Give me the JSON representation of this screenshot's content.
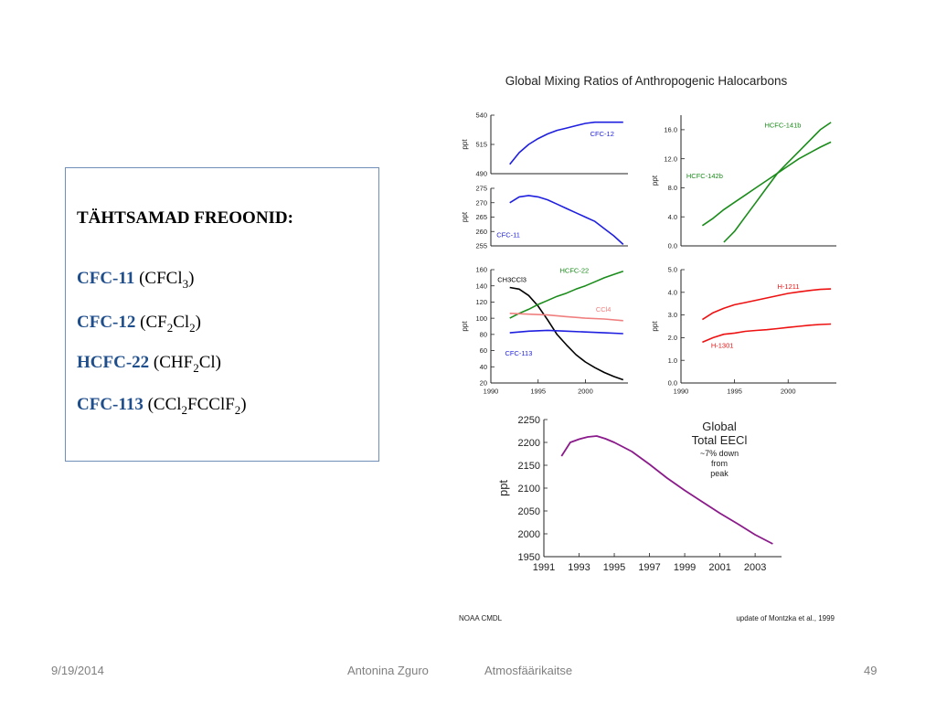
{
  "slide": {
    "box_heading": "TÄHTSAMAD FREOONID:",
    "compounds": [
      {
        "name": "CFC-11",
        "open": " (CFCl",
        "parts": [
          [
            "sub",
            "3"
          ],
          [
            "txt",
            ")"
          ]
        ]
      },
      {
        "name": "CFC-12",
        "open": " (CF",
        "parts": [
          [
            "sub",
            "2"
          ],
          [
            "txt",
            "Cl"
          ],
          [
            "sub",
            "2"
          ],
          [
            "txt",
            ")"
          ]
        ]
      },
      {
        "name": "HCFC-22",
        "open": " (CHF",
        "parts": [
          [
            "sub",
            "2"
          ],
          [
            "txt",
            "Cl)"
          ]
        ]
      },
      {
        "name": "CFC-113",
        "open": " (CCl",
        "parts": [
          [
            "sub",
            "2"
          ],
          [
            "txt",
            "FCClF"
          ],
          [
            "sub",
            "2"
          ],
          [
            "txt",
            ")"
          ]
        ]
      }
    ],
    "footer": {
      "date": "9/19/2014",
      "author": "Antonina Zguro",
      "course": "Atmosfäärikaitse",
      "page": "49"
    }
  },
  "figure": {
    "title": "Global Mixing Ratios of Anthropogenic Halocarbons",
    "source_left": "NOAA CMDL",
    "source_right": "update of Montzka et al., 1999"
  },
  "chart_data": [
    {
      "type": "line",
      "panel": "cfc12",
      "ylabel": "ppt",
      "ylim": [
        490,
        540
      ],
      "yticks": [
        490,
        515,
        540
      ],
      "xlim": [
        1990,
        2004.5
      ],
      "series": [
        {
          "name": "CFC-12",
          "color": "#1f1fe0",
          "x": [
            1992,
            1993,
            1994,
            1995,
            1996,
            1997,
            1998,
            1999,
            2000,
            2001,
            2002,
            2003,
            2004
          ],
          "y": [
            498,
            508,
            515,
            520,
            524,
            527,
            529,
            531,
            533,
            534,
            534,
            534,
            534
          ]
        }
      ]
    },
    {
      "type": "line",
      "panel": "cfc11",
      "ylabel": "ppt",
      "ylim": [
        255,
        275
      ],
      "yticks": [
        255,
        260,
        265,
        270,
        275
      ],
      "xlim": [
        1990,
        2004.5
      ],
      "series": [
        {
          "name": "CFC-11",
          "color": "#1f1fe0",
          "x": [
            1992,
            1993,
            1994,
            1995,
            1996,
            1997,
            1998,
            1999,
            2000,
            2001,
            2002,
            2003,
            2004
          ],
          "y": [
            270,
            272,
            272.5,
            272,
            271,
            269.5,
            268,
            266.5,
            265,
            263.5,
            261,
            258.5,
            255.5
          ]
        }
      ]
    },
    {
      "type": "line",
      "panel": "hcfc141",
      "ylabel": "ppt",
      "ylim": [
        0,
        18
      ],
      "yticks": [
        0,
        4,
        8,
        12,
        16
      ],
      "xlim": [
        1990,
        2004.5
      ],
      "series": [
        {
          "name": "HCFC-141b",
          "color": "#1a8c1a",
          "x": [
            1994,
            1995,
            1996,
            1997,
            1998,
            1999,
            2000,
            2001,
            2002,
            2003,
            2004
          ],
          "y": [
            0.5,
            2,
            4,
            6,
            8,
            10,
            11.5,
            13,
            14.5,
            16,
            17
          ]
        },
        {
          "name": "HCFC-142b",
          "color": "#1a8c1a",
          "x": [
            1992,
            1993,
            1994,
            1995,
            1996,
            1997,
            1998,
            1999,
            2000,
            2001,
            2002,
            2003,
            2004
          ],
          "y": [
            2.8,
            3.8,
            5,
            6,
            7,
            8,
            9,
            10,
            11,
            12,
            12.8,
            13.6,
            14.3
          ]
        }
      ]
    },
    {
      "type": "line",
      "panel": "ch3ccl3",
      "ylabel": "ppt",
      "ylim": [
        20,
        160
      ],
      "yticks": [
        20,
        40,
        60,
        80,
        100,
        120,
        140,
        160
      ],
      "xlim": [
        1990,
        2004.5
      ],
      "xticks": [
        1990,
        1995,
        2000
      ],
      "series": [
        {
          "name": "CH3CCl3",
          "color": "#000000",
          "x": [
            1992,
            1993,
            1994,
            1995,
            1996,
            1997,
            1998,
            1999,
            2000,
            2001,
            2002,
            2003,
            2004
          ],
          "y": [
            138,
            136,
            128,
            115,
            98,
            80,
            67,
            55,
            46,
            39,
            33,
            28,
            24
          ]
        },
        {
          "name": "HCFC-22",
          "color": "#1a8c1a",
          "x": [
            1992,
            1993,
            1994,
            1995,
            1996,
            1997,
            1998,
            1999,
            2000,
            2001,
            2002,
            2003,
            2004
          ],
          "y": [
            100,
            106,
            111,
            117,
            122,
            127,
            131,
            136,
            140,
            145,
            150,
            154,
            158
          ]
        },
        {
          "name": "CCl4",
          "color": "#f08080",
          "x": [
            1992,
            1994,
            1996,
            1998,
            2000,
            2002,
            2004
          ],
          "y": [
            106,
            105,
            104,
            102,
            100,
            99,
            97
          ]
        },
        {
          "name": "CFC-113",
          "color": "#1f1fe0",
          "x": [
            1992,
            1994,
            1996,
            1998,
            2000,
            2002,
            2004
          ],
          "y": [
            82,
            84,
            85,
            84,
            83,
            82,
            81
          ]
        }
      ]
    },
    {
      "type": "line",
      "panel": "halons",
      "ylabel": "ppt",
      "ylim": [
        0,
        5
      ],
      "yticks": [
        0.0,
        1.0,
        2.0,
        3.0,
        4.0,
        5.0
      ],
      "xlim": [
        1990,
        2004.5
      ],
      "xticks": [
        1990,
        1995,
        2000
      ],
      "series": [
        {
          "name": "H-1211",
          "color": "#ee1111",
          "x": [
            1992,
            1993,
            1994,
            1995,
            1996,
            1997,
            1998,
            1999,
            2000,
            2001,
            2002,
            2003,
            2004
          ],
          "y": [
            2.8,
            3.1,
            3.3,
            3.45,
            3.55,
            3.65,
            3.75,
            3.85,
            3.95,
            4.02,
            4.08,
            4.13,
            4.15
          ]
        },
        {
          "name": "H-1301",
          "color": "#ee1111",
          "x": [
            1992,
            1993,
            1994,
            1995,
            1996,
            1997,
            1998,
            1999,
            2000,
            2001,
            2002,
            2003,
            2004
          ],
          "y": [
            1.8,
            2.0,
            2.15,
            2.2,
            2.28,
            2.32,
            2.35,
            2.4,
            2.45,
            2.5,
            2.55,
            2.58,
            2.6
          ]
        }
      ]
    },
    {
      "type": "line",
      "panel": "eecl",
      "ylabel": "ppt",
      "ylim": [
        1950,
        2250
      ],
      "yticks": [
        1950,
        2000,
        2050,
        2100,
        2150,
        2200,
        2250
      ],
      "xlim": [
        1991,
        2004.5
      ],
      "xticks": [
        1991,
        1993,
        1995,
        1997,
        1999,
        2001,
        2003
      ],
      "annotation": [
        "Global",
        "Total EECl",
        "~7% down",
        "from",
        "peak"
      ],
      "series": [
        {
          "name": "Global Total EECl",
          "color": "#8b1a8b",
          "x": [
            1992,
            1992.5,
            1993,
            1993.5,
            1994,
            1994.5,
            1995,
            1995.5,
            1996,
            1997,
            1998,
            1999,
            2000,
            2001,
            2002,
            2003,
            2004
          ],
          "y": [
            2170,
            2200,
            2207,
            2212,
            2214,
            2208,
            2200,
            2190,
            2180,
            2152,
            2122,
            2095,
            2070,
            2045,
            2022,
            1998,
            1978
          ]
        }
      ]
    }
  ]
}
